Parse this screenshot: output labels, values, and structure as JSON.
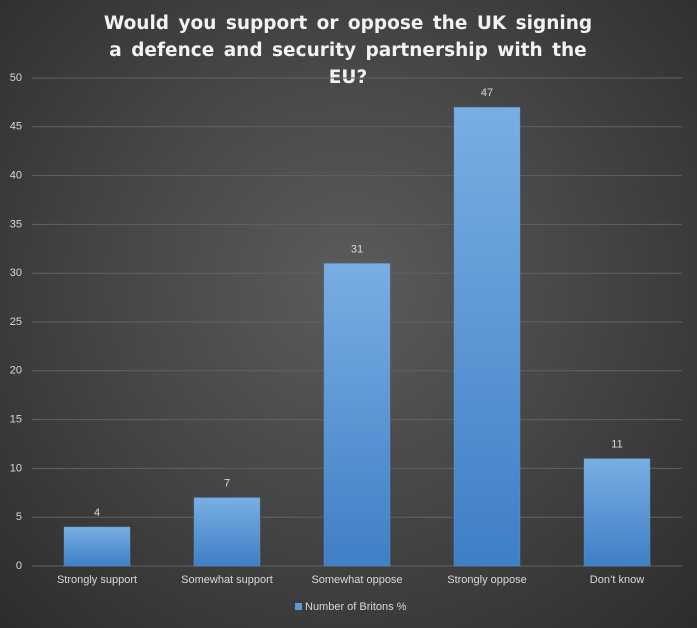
{
  "chart_data": {
    "type": "bar",
    "title": "Would you support  or oppose the UK signing a defence and security partnership with the EU?",
    "categories": [
      "Strongly support",
      "Somewhat support",
      "Somewhat oppose",
      "Strongly oppose",
      "Don’t know"
    ],
    "series": [
      {
        "name": "Number of Britons %",
        "color": "#5b9bd5",
        "values": [
          4,
          7,
          31,
          47,
          11
        ]
      }
    ],
    "ylim": [
      0,
      50
    ],
    "yticks": [
      0,
      5,
      10,
      15,
      20,
      25,
      30,
      35,
      40,
      45,
      50
    ],
    "grid": true,
    "legend": "bottom"
  }
}
